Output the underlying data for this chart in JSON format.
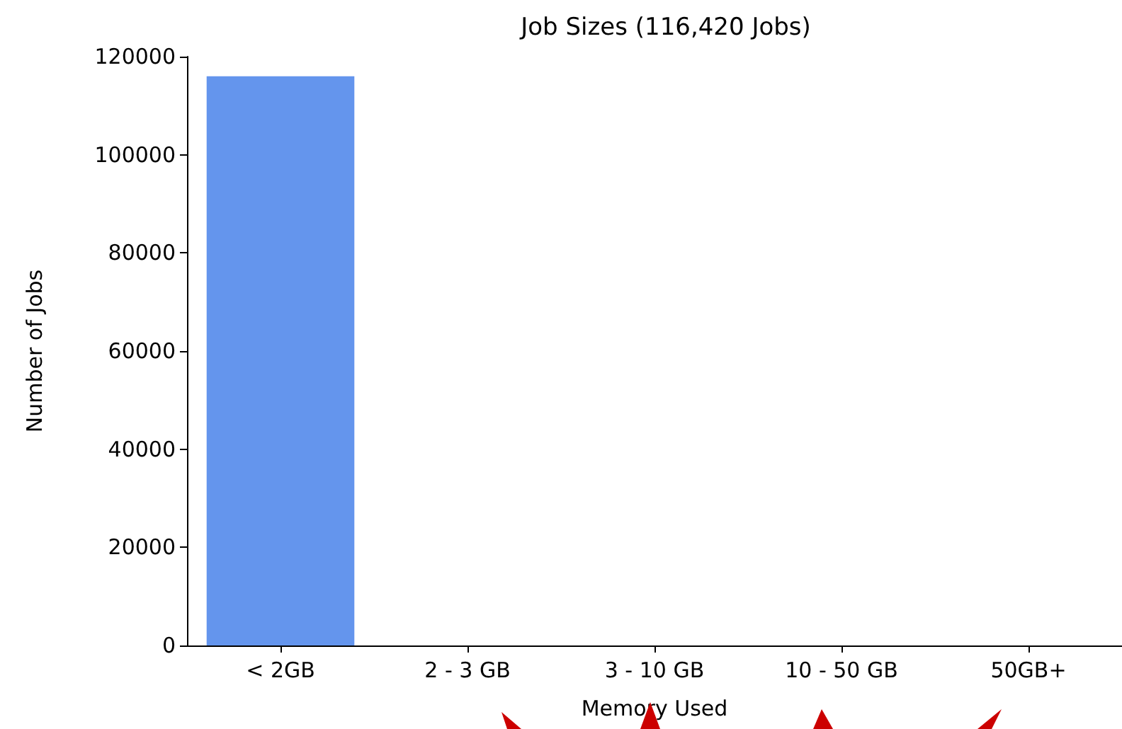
{
  "chart_data": {
    "type": "bar",
    "title": "Job Sizes (116,420 Jobs)",
    "xlabel": "Memory Used",
    "ylabel": "Number of Jobs",
    "categories": [
      "< 2GB",
      "2 - 3 GB",
      "3 - 10 GB",
      "10 - 50 GB",
      "50GB+"
    ],
    "values": [
      116000,
      0,
      0,
      0,
      0
    ],
    "color": "#6495ed",
    "ylim": [
      0,
      120000
    ],
    "yticks": [
      0,
      20000,
      40000,
      60000,
      80000,
      100000,
      120000
    ],
    "grid": false
  }
}
